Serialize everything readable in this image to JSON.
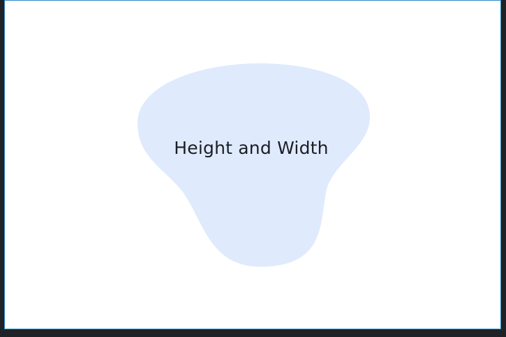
{
  "canvas": {
    "label": "Height and Width",
    "colors": {
      "background": "#ffffff",
      "outer_background": "#1f2328",
      "border": "#2e8bc9",
      "blob_fill": "#dfeafd",
      "text": "#1b1f24"
    }
  }
}
